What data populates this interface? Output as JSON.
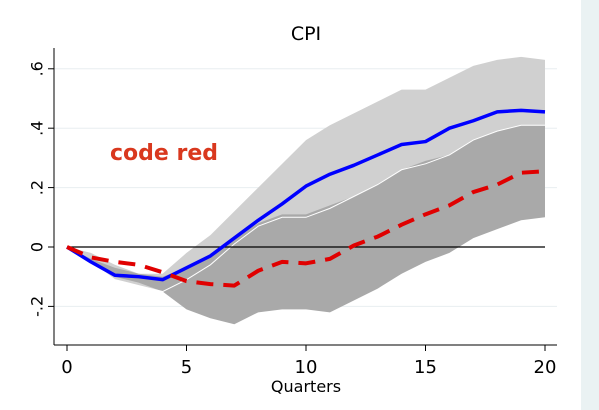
{
  "chart_data": {
    "type": "line",
    "title": "CPI",
    "xlabel": "Quarters",
    "ylabel": "",
    "xlim": [
      0,
      20
    ],
    "ylim": [
      -0.33,
      0.67
    ],
    "x_ticks": [
      0,
      5,
      10,
      15,
      20
    ],
    "x_tick_labels": [
      "0",
      "5",
      "10",
      "15",
      "20"
    ],
    "y_ticks": [
      -0.2,
      0,
      0.2,
      0.4,
      0.6
    ],
    "y_tick_labels": [
      "-.2",
      "0",
      ".2",
      ".4",
      ".6"
    ],
    "grid": "horizontal",
    "zero_line": 0,
    "annotation": "code red",
    "x": [
      0,
      1,
      2,
      3,
      4,
      5,
      6,
      7,
      8,
      9,
      10,
      11,
      12,
      13,
      14,
      15,
      16,
      17,
      18,
      19,
      20
    ],
    "series": [
      {
        "style": "solid",
        "color": "#0000ff",
        "values": [
          0,
          -0.05,
          -0.095,
          -0.1,
          -0.11,
          -0.07,
          -0.03,
          0.03,
          0.09,
          0.145,
          0.205,
          0.245,
          0.275,
          0.31,
          0.345,
          0.355,
          0.4,
          0.425,
          0.455,
          0.46,
          0.455
        ]
      },
      {
        "style": "dashed",
        "color": "#e00000",
        "values": [
          0,
          -0.035,
          -0.05,
          -0.06,
          -0.085,
          -0.115,
          -0.125,
          -0.13,
          -0.08,
          -0.05,
          -0.055,
          -0.04,
          0.005,
          0.035,
          0.075,
          0.11,
          0.14,
          0.185,
          0.21,
          0.25,
          0.255
        ]
      }
    ],
    "bands": [
      {
        "color": "#d0d0d0",
        "upper": [
          0,
          -0.02,
          -0.06,
          -0.09,
          -0.09,
          -0.02,
          0.04,
          0.12,
          0.2,
          0.28,
          0.36,
          0.41,
          0.45,
          0.49,
          0.53,
          0.53,
          0.57,
          0.61,
          0.63,
          0.64,
          0.63
        ],
        "lower": [
          0,
          -0.05,
          -0.11,
          -0.13,
          -0.15,
          -0.11,
          -0.06,
          0.01,
          0.07,
          0.1,
          0.1,
          0.13,
          0.17,
          0.21,
          0.26,
          0.28,
          0.31,
          0.36,
          0.39,
          0.41,
          0.41
        ]
      },
      {
        "color": "#a9a9a9",
        "upper": [
          0,
          -0.04,
          -0.07,
          -0.09,
          -0.1,
          -0.07,
          -0.03,
          0.03,
          0.08,
          0.11,
          0.11,
          0.14,
          0.17,
          0.21,
          0.26,
          0.29,
          0.31,
          0.36,
          0.39,
          0.41,
          0.41
        ],
        "lower": [
          0,
          -0.05,
          -0.1,
          -0.12,
          -0.15,
          -0.21,
          -0.24,
          -0.26,
          -0.22,
          -0.21,
          -0.21,
          -0.22,
          -0.18,
          -0.14,
          -0.09,
          -0.05,
          -0.02,
          0.03,
          0.06,
          0.09,
          0.1
        ]
      }
    ]
  }
}
